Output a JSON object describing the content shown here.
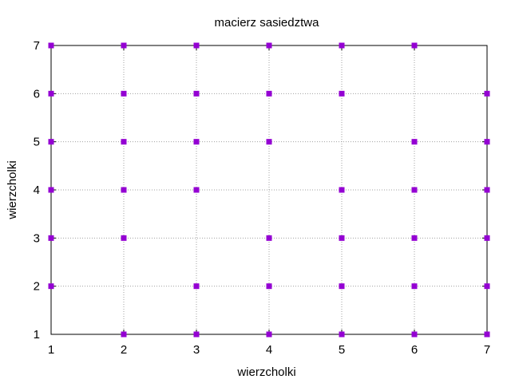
{
  "chart_data": {
    "type": "scatter",
    "title": "macierz sasiedztwa",
    "xlabel": "wierzcholki",
    "ylabel": "wierzcholki",
    "xlim": [
      1,
      7
    ],
    "ylim": [
      1,
      7
    ],
    "xticks": [
      "1",
      "2",
      "3",
      "4",
      "5",
      "6",
      "7"
    ],
    "yticks": [
      "1",
      "2",
      "3",
      "4",
      "5",
      "6",
      "7"
    ],
    "grid": true,
    "marker": "square",
    "marker_color": "#9400d3",
    "series": [
      {
        "points": [
          [
            1,
            2
          ],
          [
            1,
            3
          ],
          [
            1,
            4
          ],
          [
            1,
            5
          ],
          [
            1,
            6
          ],
          [
            1,
            7
          ],
          [
            2,
            1
          ],
          [
            2,
            3
          ],
          [
            2,
            4
          ],
          [
            2,
            5
          ],
          [
            2,
            6
          ],
          [
            2,
            7
          ],
          [
            3,
            1
          ],
          [
            3,
            2
          ],
          [
            3,
            4
          ],
          [
            3,
            5
          ],
          [
            3,
            6
          ],
          [
            3,
            7
          ],
          [
            4,
            1
          ],
          [
            4,
            2
          ],
          [
            4,
            3
          ],
          [
            4,
            5
          ],
          [
            4,
            6
          ],
          [
            4,
            7
          ],
          [
            5,
            1
          ],
          [
            5,
            2
          ],
          [
            5,
            3
          ],
          [
            5,
            4
          ],
          [
            5,
            6
          ],
          [
            5,
            7
          ],
          [
            6,
            1
          ],
          [
            6,
            2
          ],
          [
            6,
            3
          ],
          [
            6,
            4
          ],
          [
            6,
            5
          ],
          [
            6,
            7
          ],
          [
            7,
            1
          ],
          [
            7,
            2
          ],
          [
            7,
            3
          ],
          [
            7,
            4
          ],
          [
            7,
            5
          ],
          [
            7,
            6
          ]
        ]
      }
    ]
  }
}
